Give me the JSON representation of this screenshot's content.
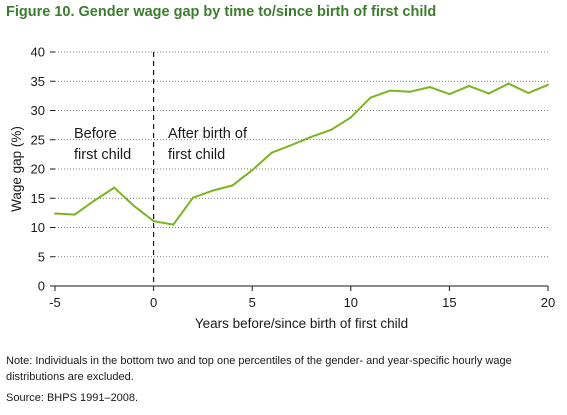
{
  "figure": {
    "title": "Figure 10. Gender wage gap by time to/since birth of first child",
    "note": "Note: Individuals in the bottom two and top one percentiles of the gender- and year-specific hourly wage distributions are excluded.",
    "source": "Source: BHPS 1991–2008."
  },
  "chart_data": {
    "type": "line",
    "title": "Figure 10. Gender wage gap by time to/since birth of first child",
    "xlabel": "Years before/since birth of first child",
    "ylabel": "Wage gap (%)",
    "xlim": [
      -5,
      20
    ],
    "ylim": [
      0,
      40
    ],
    "xticks": [
      -5,
      0,
      5,
      10,
      15,
      20
    ],
    "yticks": [
      0,
      5,
      10,
      15,
      20,
      25,
      30,
      35,
      40
    ],
    "grid": "horizontal dotted",
    "line_color": "#7ab51d",
    "series": [
      {
        "x": [
          -5,
          -4,
          -3,
          -2,
          -1,
          0,
          1,
          2,
          3,
          4,
          5,
          6,
          7,
          8,
          9,
          10,
          11,
          12,
          13,
          14,
          15,
          16,
          17,
          18,
          19,
          20
        ],
        "values": [
          12.4,
          12.2,
          14.6,
          16.8,
          13.7,
          11.1,
          10.5,
          15.1,
          16.3,
          17.2,
          19.8,
          22.8,
          24.1,
          25.5,
          26.7,
          28.8,
          32.2,
          33.4,
          33.2,
          34.0,
          32.8,
          34.2,
          32.9,
          34.6,
          33.0,
          34.4
        ]
      }
    ],
    "vline": {
      "x": 0,
      "style": "dashed"
    },
    "annotations": [
      {
        "lines": [
          "Before",
          "first child"
        ]
      },
      {
        "lines": [
          "After birth of",
          "first child"
        ]
      }
    ]
  }
}
